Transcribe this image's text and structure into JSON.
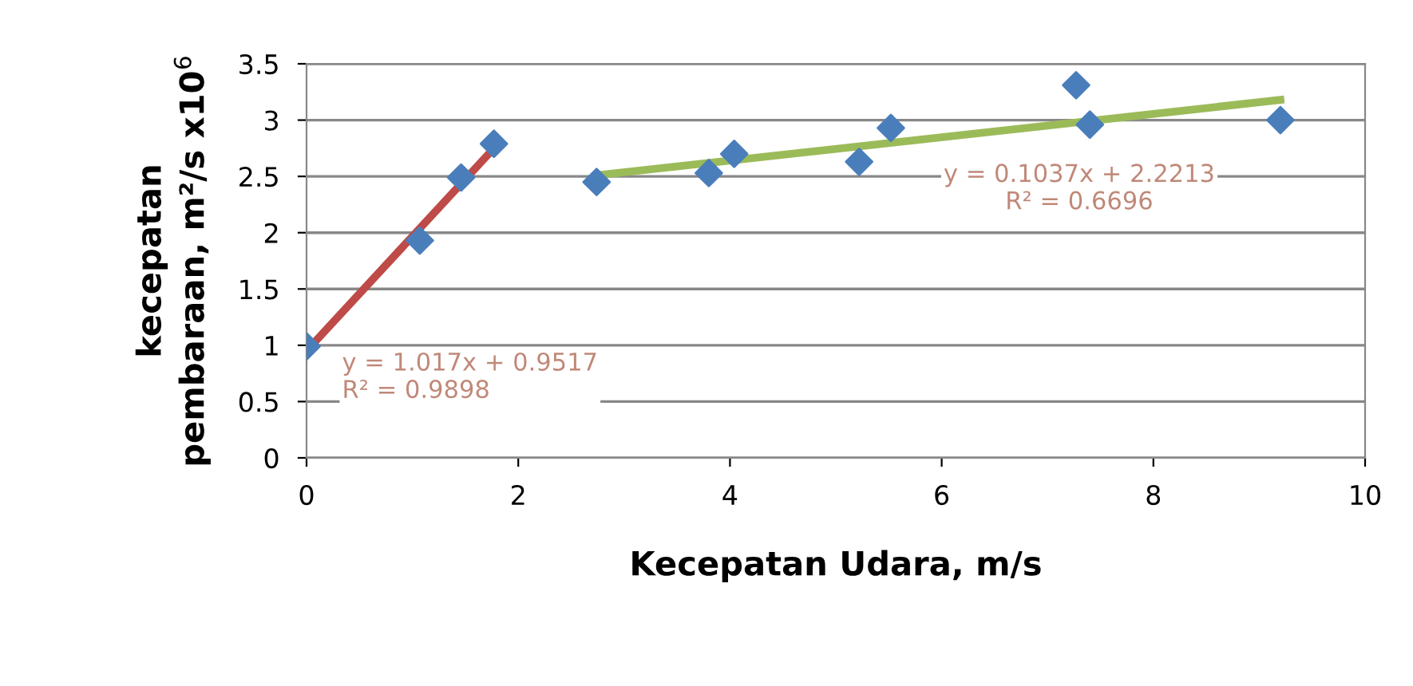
{
  "chart_data": {
    "type": "scatter",
    "xlabel": "Kecepatan Udara, m/s",
    "ylabel": "kecepatan\npembaraan, m²/s x10$^{6}$",
    "xlim": [
      0,
      10
    ],
    "xticks": [
      0,
      2,
      4,
      6,
      8,
      10
    ],
    "ylim": [
      0,
      3.5
    ],
    "yticks": [
      0,
      0.5,
      1,
      1.5,
      2,
      2.5,
      3,
      3.5
    ],
    "grid": "y",
    "legend": false,
    "series": [
      {
        "type": "scatter",
        "marker": "diamond",
        "color": "#4a7ebb",
        "x": [
          0,
          1.07,
          1.46,
          1.77,
          2.74,
          3.8,
          4.04,
          5.22,
          5.52,
          7.27,
          7.4,
          9.2
        ],
        "values": [
          0.99,
          1.93,
          2.49,
          2.79,
          2.45,
          2.53,
          2.7,
          2.63,
          2.93,
          3.31,
          2.96,
          3.0
        ]
      },
      {
        "type": "line",
        "marker": "none",
        "color": "#be4b48",
        "x": [
          0,
          1.77
        ],
        "values": [
          0.95,
          2.75
        ]
      },
      {
        "type": "line",
        "marker": "none",
        "color": "#9bbb59",
        "x": [
          2.74,
          9.2
        ],
        "values": [
          2.51,
          3.18
        ]
      }
    ],
    "annotations": [
      {
        "text": "y = 1.017x + 0.9517\nR² = 0.9898",
        "x": 0,
        "y": 0.95
      },
      {
        "text": "y = 0.1037x + 2.2213\nR² = 0.6696",
        "x": 7.3,
        "y": 2.98
      }
    ]
  }
}
